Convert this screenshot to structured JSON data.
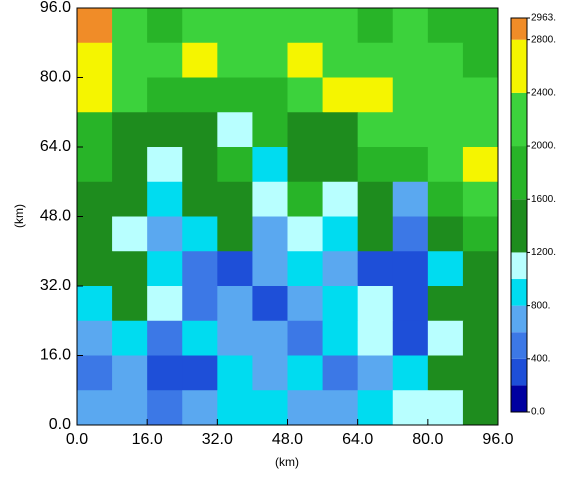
{
  "chart_data": {
    "type": "contour",
    "xlabel": "(km)",
    "ylabel": "(km)",
    "xlim": [
      0,
      96
    ],
    "ylim": [
      0,
      96
    ],
    "xticks": [
      {
        "value": 0,
        "label": "0.0"
      },
      {
        "value": 16,
        "label": "16.0"
      },
      {
        "value": 32,
        "label": "32.0"
      },
      {
        "value": 48,
        "label": "48.0"
      },
      {
        "value": 64,
        "label": "64.0"
      },
      {
        "value": 80,
        "label": "80.0"
      },
      {
        "value": 96,
        "label": "96.0"
      }
    ],
    "yticks": [
      {
        "value": 0,
        "label": "0.0"
      },
      {
        "value": 16,
        "label": "16.0"
      },
      {
        "value": 32,
        "label": "32.0"
      },
      {
        "value": 48,
        "label": "48.0"
      },
      {
        "value": 64,
        "label": "64.0"
      },
      {
        "value": 80,
        "label": "80.0"
      },
      {
        "value": 96,
        "label": "96.0"
      }
    ],
    "x": [
      4,
      12,
      20,
      28,
      36,
      44,
      52,
      60,
      68,
      76,
      84,
      92
    ],
    "y": [
      92,
      84,
      76,
      68,
      60,
      52,
      44,
      36,
      28,
      20,
      12,
      4
    ],
    "z": [
      [
        2850,
        2300,
        1900,
        2100,
        2200,
        2100,
        2300,
        2000,
        1900,
        2000,
        1900,
        1800
      ],
      [
        2500,
        2300,
        2000,
        2400,
        2000,
        2200,
        2500,
        2300,
        2100,
        2200,
        2000,
        1900
      ],
      [
        2400,
        2000,
        1800,
        1600,
        1700,
        1900,
        2000,
        2700,
        2400,
        2100,
        2200,
        2100
      ],
      [
        1900,
        1500,
        1300,
        1500,
        1000,
        1600,
        1400,
        1500,
        2100,
        2000,
        2200,
        2300
      ],
      [
        1800,
        1400,
        1000,
        1500,
        1700,
        900,
        1500,
        1300,
        1600,
        1700,
        2200,
        2400
      ],
      [
        1500,
        1200,
        800,
        1300,
        1500,
        1000,
        1600,
        1100,
        1400,
        700,
        1600,
        2000
      ],
      [
        1400,
        1100,
        700,
        900,
        1300,
        600,
        1100,
        900,
        1300,
        500,
        1300,
        1600
      ],
      [
        1500,
        1300,
        900,
        400,
        300,
        600,
        900,
        700,
        300,
        300,
        800,
        1300
      ],
      [
        900,
        1300,
        1100,
        500,
        700,
        300,
        700,
        900,
        1100,
        200,
        1300,
        1400
      ],
      [
        700,
        900,
        400,
        900,
        600,
        700,
        400,
        800,
        1100,
        300,
        1000,
        1400
      ],
      [
        500,
        600,
        300,
        200,
        800,
        700,
        900,
        500,
        700,
        900,
        1200,
        1300
      ],
      [
        700,
        600,
        400,
        700,
        800,
        900,
        600,
        700,
        900,
        1000,
        1100,
        1200
      ]
    ],
    "bounds": [
      0,
      200,
      400,
      600,
      800,
      1000,
      1200,
      1600,
      2000,
      2400,
      2800,
      2963
    ],
    "colors": [
      "#0000a0",
      "#1e4fd8",
      "#3c78e6",
      "#5aa8f0",
      "#00dcf0",
      "#b8ffff",
      "#1e8c1e",
      "#28b428",
      "#3cd23c",
      "#f5f500",
      "#f08c28"
    ],
    "colorbar_ticks": [
      {
        "value": 0,
        "label": "0.0"
      },
      {
        "value": 400,
        "label": "400."
      },
      {
        "value": 800,
        "label": "800."
      },
      {
        "value": 1200,
        "label": "1200."
      },
      {
        "value": 1600,
        "label": "1600."
      },
      {
        "value": 2000,
        "label": "2000."
      },
      {
        "value": 2400,
        "label": "2400."
      },
      {
        "value": 2800,
        "label": "2800."
      },
      {
        "value": 2963,
        "label": "2963."
      }
    ]
  }
}
